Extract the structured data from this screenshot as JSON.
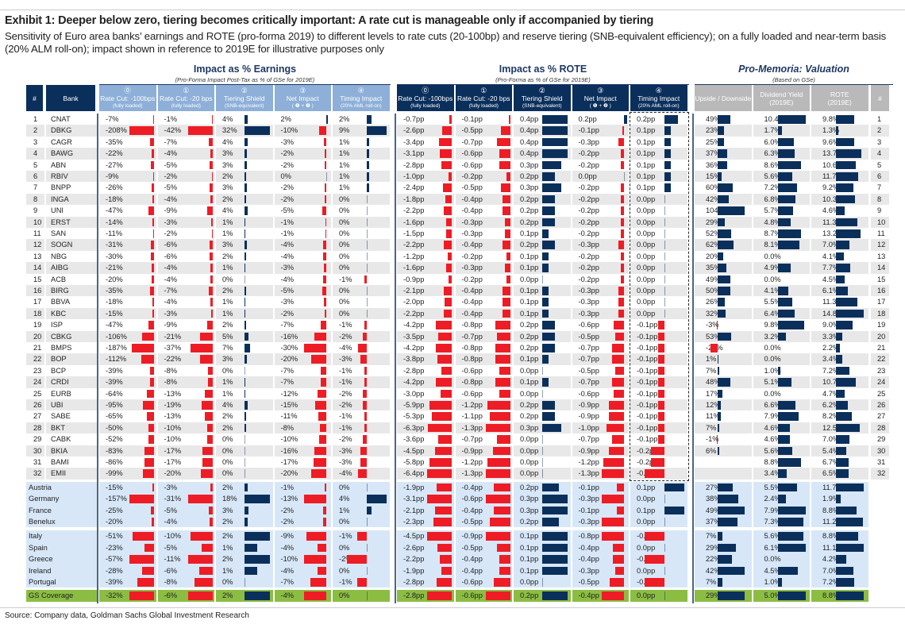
{
  "title": "Exhibit 1: Deeper below zero, tiering becomes critically important: A rate cut is manageable only if accompanied by tiering",
  "subtitle": "Sensitivity of Euro area banks’ earnings and ROTE (pro-forma 2019) to different levels to rate cuts (20-100bp) and reserve tiering (SNB-equivalent efficiency); on a fully loaded and near-term basis (20% ALM roll-on); impact shown in reference to 2019E for illustrative purposes only",
  "source": "Source: Company data, Goldman Sachs Global Investment Research",
  "colors": {
    "negative": "#ee1c25",
    "positive": "#0b2f5b",
    "header_dark": "#0b2f5b",
    "header_light": "#8dafd8",
    "header_gray": "#b9b9b9",
    "country_bg": "#d7e7f8",
    "total_bg": "#8bbd43"
  },
  "sections": {
    "earnings": {
      "title": "Impact as % Earnings",
      "subtitle": "(Pro-Forma Impact Post-Tax as % of GSe for 2019E)"
    },
    "rote": {
      "title": "Impact as % ROTE",
      "subtitle": "(Pro-Forma as % of GSe for 2019E)"
    },
    "valuation": {
      "title": "Pro-Memoria: Valuation",
      "subtitle": "(Based on GSe)"
    }
  },
  "headers": {
    "num": "#",
    "bank": "Bank",
    "impact_cols": [
      {
        "num": "⓪",
        "label": "Rate Cut: -100bps",
        "sub": "(fully loaded)"
      },
      {
        "num": "①",
        "label": "Rate Cut: -20 bps",
        "sub": "(fully loaded)"
      },
      {
        "num": "②",
        "label": "Tiering Shield",
        "sub": "(SNB-equivalent)"
      },
      {
        "num": "③",
        "label": "Net Impact",
        "sub": "( ❶ + ❷ )"
      },
      {
        "num": "④",
        "label": "Timing Impact",
        "sub": "(20% AML roll-on)"
      }
    ],
    "valuation_cols": [
      {
        "label": "Upside / Downside",
        "sub": ""
      },
      {
        "label": "Dividend Yield",
        "sub": "(2019E)"
      },
      {
        "label": "ROTE",
        "sub": "(2019E)"
      }
    ],
    "num_right": "#"
  },
  "chart_data": {
    "type": "table",
    "bank_rows": [
      {
        "num": "1",
        "name": "CNAT",
        "earnings": [
          "-7%",
          "-1%",
          "4%",
          "2%",
          "2%"
        ],
        "rote": [
          "-0.7pp",
          "-0.1pp",
          "0.4pp",
          "0.2pp",
          "0.2pp"
        ],
        "valuation": [
          "49%",
          "10.4%",
          "9.8%"
        ]
      },
      {
        "num": "2",
        "name": "DBKG",
        "earnings": [
          "-208%",
          "-42%",
          "32%",
          "-10%",
          "9%"
        ],
        "rote": [
          "-2.6pp",
          "-0.5pp",
          "0.4pp",
          "-0.1pp",
          "0.1pp"
        ],
        "valuation": [
          "23%",
          "1.7%",
          "1.3%"
        ]
      },
      {
        "num": "3",
        "name": "CAGR",
        "earnings": [
          "-35%",
          "-7%",
          "4%",
          "-3%",
          "1%"
        ],
        "rote": [
          "-3.4pp",
          "-0.7pp",
          "0.4pp",
          "-0.3pp",
          "0.1pp"
        ],
        "valuation": [
          "25%",
          "6.0%",
          "9.6%"
        ]
      },
      {
        "num": "4",
        "name": "BAWG",
        "earnings": [
          "-22%",
          "-4%",
          "3%",
          "-2%",
          "1%"
        ],
        "rote": [
          "-3.1pp",
          "-0.6pp",
          "0.4pp",
          "-0.2pp",
          "0.1pp"
        ],
        "valuation": [
          "37%",
          "6.3%",
          "13.7%"
        ]
      },
      {
        "num": "5",
        "name": "ABN",
        "earnings": [
          "-27%",
          "-5%",
          "3%",
          "-2%",
          "1%"
        ],
        "rote": [
          "-2.8pp",
          "-0.6pp",
          "0.3pp",
          "-0.2pp",
          "0.1pp"
        ],
        "valuation": [
          "36%",
          "8.6%",
          "10.6%"
        ]
      },
      {
        "num": "6",
        "name": "RBIV",
        "earnings": [
          "-9%",
          "-2%",
          "2%",
          "0%",
          "1%"
        ],
        "rote": [
          "-1.0pp",
          "-0.2pp",
          "0.2pp",
          "0.0pp",
          "0.1pp"
        ],
        "valuation": [
          "15%",
          "5.6%",
          "11.7%"
        ]
      },
      {
        "num": "7",
        "name": "BNPP",
        "earnings": [
          "-26%",
          "-5%",
          "3%",
          "-2%",
          "1%"
        ],
        "rote": [
          "-2.4pp",
          "-0.5pp",
          "0.3pp",
          "-0.2pp",
          "0.1pp"
        ],
        "valuation": [
          "60%",
          "7.2%",
          "9.2%"
        ]
      },
      {
        "num": "8",
        "name": "INGA",
        "earnings": [
          "-18%",
          "-4%",
          "2%",
          "-2%",
          "0%"
        ],
        "rote": [
          "-1.8pp",
          "-0.4pp",
          "0.2pp",
          "-0.2pp",
          "0.0pp"
        ],
        "valuation": [
          "42%",
          "6.8%",
          "10.3%"
        ]
      },
      {
        "num": "9",
        "name": "UNI",
        "earnings": [
          "-47%",
          "-9%",
          "4%",
          "-5%",
          "0%"
        ],
        "rote": [
          "-2.2pp",
          "-0.4pp",
          "0.2pp",
          "-0.2pp",
          "0.0pp"
        ],
        "valuation": [
          "104%",
          "5.7%",
          "4.6%"
        ]
      },
      {
        "num": "10",
        "name": "ERST",
        "earnings": [
          "-14%",
          "-3%",
          "1%",
          "-1%",
          "0%"
        ],
        "rote": [
          "-1.6pp",
          "-0.3pp",
          "0.2pp",
          "-0.2pp",
          "0.0pp"
        ],
        "valuation": [
          "29%",
          "4.8%",
          "11.3%"
        ]
      },
      {
        "num": "11",
        "name": "SAN",
        "earnings": [
          "-11%",
          "-2%",
          "1%",
          "-1%",
          "0%"
        ],
        "rote": [
          "-1.5pp",
          "-0.3pp",
          "0.1pp",
          "-0.2pp",
          "0.0pp"
        ],
        "valuation": [
          "52%",
          "8.7%",
          "13.2%"
        ]
      },
      {
        "num": "12",
        "name": "SOGN",
        "earnings": [
          "-31%",
          "-6%",
          "3%",
          "-4%",
          "0%"
        ],
        "rote": [
          "-2.2pp",
          "-0.4pp",
          "0.2pp",
          "-0.3pp",
          "0.0pp"
        ],
        "valuation": [
          "62%",
          "8.1%",
          "7.0%"
        ]
      },
      {
        "num": "13",
        "name": "NBG",
        "earnings": [
          "-30%",
          "-6%",
          "2%",
          "-4%",
          "0%"
        ],
        "rote": [
          "-1.2pp",
          "-0.2pp",
          "0.1pp",
          "-0.2pp",
          "0.0pp"
        ],
        "valuation": [
          "20%",
          "0.0%",
          "4.1%"
        ]
      },
      {
        "num": "14",
        "name": "AIBG",
        "earnings": [
          "-21%",
          "-4%",
          "1%",
          "-3%",
          "0%"
        ],
        "rote": [
          "-1.6pp",
          "-0.3pp",
          "0.1pp",
          "-0.2pp",
          "0.0pp"
        ],
        "valuation": [
          "35%",
          "4.9%",
          "7.7%"
        ]
      },
      {
        "num": "15",
        "name": "ACB",
        "earnings": [
          "-20%",
          "-4%",
          "0%",
          "-4%",
          "-1%"
        ],
        "rote": [
          "-0.9pp",
          "-0.2pp",
          "0.0pp",
          "-0.2pp",
          "0.0pp"
        ],
        "valuation": [
          "49%",
          "0.0%",
          "4.5%"
        ]
      },
      {
        "num": "16",
        "name": "BIRG",
        "earnings": [
          "-35%",
          "-7%",
          "2%",
          "-5%",
          "0%"
        ],
        "rote": [
          "-2.1pp",
          "-0.4pp",
          "0.1pp",
          "-0.3pp",
          "0.0pp"
        ],
        "valuation": [
          "50%",
          "4.1%",
          "6.1%"
        ]
      },
      {
        "num": "17",
        "name": "BBVA",
        "earnings": [
          "-18%",
          "-4%",
          "1%",
          "-3%",
          "0%"
        ],
        "rote": [
          "-2.0pp",
          "-0.4pp",
          "0.1pp",
          "-0.3pp",
          "0.0pp"
        ],
        "valuation": [
          "26%",
          "5.5%",
          "11.3%"
        ]
      },
      {
        "num": "18",
        "name": "KBC",
        "earnings": [
          "-15%",
          "-3%",
          "1%",
          "-2%",
          "0%"
        ],
        "rote": [
          "-2.2pp",
          "-0.4pp",
          "0.1pp",
          "-0.3pp",
          "0.0pp"
        ],
        "valuation": [
          "32%",
          "6.4%",
          "14.8%"
        ]
      },
      {
        "num": "19",
        "name": "ISP",
        "earnings": [
          "-47%",
          "-9%",
          "2%",
          "-7%",
          "-1%"
        ],
        "rote": [
          "-4.2pp",
          "-0.8pp",
          "0.2pp",
          "-0.6pp",
          "-0.1pp"
        ],
        "valuation": [
          "-3%",
          "9.8%",
          "9.0%"
        ]
      },
      {
        "num": "20",
        "name": "CBKG",
        "earnings": [
          "-106%",
          "-21%",
          "5%",
          "-16%",
          "-2%"
        ],
        "rote": [
          "-3.5pp",
          "-0.7pp",
          "0.2pp",
          "-0.5pp",
          "-0.1pp"
        ],
        "valuation": [
          "53%",
          "3.2%",
          "3.3%"
        ]
      },
      {
        "num": "21",
        "name": "BMPS",
        "earnings": [
          "-187%",
          "-37%",
          "7%",
          "-30%",
          "-4%"
        ],
        "rote": [
          "-4.2pp",
          "-0.8pp",
          "0.2pp",
          "-0.7pp",
          "-0.1pp"
        ],
        "valuation": [
          "-28%",
          "0.0%",
          "2.2%"
        ]
      },
      {
        "num": "22",
        "name": "BOP",
        "earnings": [
          "-112%",
          "-22%",
          "3%",
          "-20%",
          "-3%"
        ],
        "rote": [
          "-3.8pp",
          "-0.8pp",
          "0.1pp",
          "-0.7pp",
          "-0.1pp"
        ],
        "valuation": [
          "1%",
          "0.0%",
          "3.4%"
        ]
      },
      {
        "num": "23",
        "name": "BCP",
        "earnings": [
          "-39%",
          "-8%",
          "0%",
          "-7%",
          "-1%"
        ],
        "rote": [
          "-2.8pp",
          "-0.6pp",
          "0.0pp",
          "-0.5pp",
          "-0.1pp"
        ],
        "valuation": [
          "7%",
          "1.0%",
          "7.2%"
        ]
      },
      {
        "num": "24",
        "name": "CRDI",
        "earnings": [
          "-39%",
          "-8%",
          "1%",
          "-7%",
          "-1%"
        ],
        "rote": [
          "-4.2pp",
          "-0.8pp",
          "0.1pp",
          "-0.7pp",
          "-0.1pp"
        ],
        "valuation": [
          "48%",
          "5.1%",
          "10.7%"
        ]
      },
      {
        "num": "25",
        "name": "EURB",
        "earnings": [
          "-64%",
          "-13%",
          "1%",
          "-12%",
          "-2%"
        ],
        "rote": [
          "-3.0pp",
          "-0.6pp",
          "0.0pp",
          "-0.6pp",
          "-0.1pp"
        ],
        "valuation": [
          "17%",
          "0.0%",
          "4.7%"
        ]
      },
      {
        "num": "26",
        "name": "UBI",
        "earnings": [
          "-95%",
          "-19%",
          "4%",
          "-15%",
          "-2%"
        ],
        "rote": [
          "-5.9pp",
          "-1.2pp",
          "0.2pp",
          "-0.9pp",
          "-0.1pp"
        ],
        "valuation": [
          "12%",
          "6.6%",
          "6.2%"
        ]
      },
      {
        "num": "27",
        "name": "SABE",
        "earnings": [
          "-65%",
          "-13%",
          "2%",
          "-11%",
          "-1%"
        ],
        "rote": [
          "-5.3pp",
          "-1.1pp",
          "0.2pp",
          "-0.9pp",
          "-0.1pp"
        ],
        "valuation": [
          "11%",
          "7.9%",
          "8.2%"
        ]
      },
      {
        "num": "28",
        "name": "BKT",
        "earnings": [
          "-50%",
          "-10%",
          "2%",
          "-8%",
          "-1%"
        ],
        "rote": [
          "-6.3pp",
          "-1.3pp",
          "0.3pp",
          "-1.0pp",
          "-0.1pp"
        ],
        "valuation": [
          "7%",
          "4.6%",
          "12.5%"
        ]
      },
      {
        "num": "29",
        "name": "CABK",
        "earnings": [
          "-52%",
          "-10%",
          "0%",
          "-10%",
          "-2%"
        ],
        "rote": [
          "-3.6pp",
          "-0.7pp",
          "0.0pp",
          "-0.7pp",
          "-0.1pp"
        ],
        "valuation": [
          "-1%",
          "4.6%",
          "7.0%"
        ]
      },
      {
        "num": "30",
        "name": "BKIA",
        "earnings": [
          "-83%",
          "-17%",
          "0%",
          "-16%",
          "-3%"
        ],
        "rote": [
          "-4.5pp",
          "-0.9pp",
          "0.0pp",
          "-0.9pp",
          "-0.2pp"
        ],
        "valuation": [
          "6%",
          "5.6%",
          "5.4%"
        ]
      },
      {
        "num": "31",
        "name": "BAMI",
        "earnings": [
          "-86%",
          "-17%",
          "0%",
          "-17%",
          "-3%"
        ],
        "rote": [
          "-5.8pp",
          "-1.2pp",
          "0.0pp",
          "-1.2pp",
          "-0.2pp"
        ],
        "valuation": [
          "",
          "8.8%",
          "6.7%"
        ]
      },
      {
        "num": "32",
        "name": "EMII",
        "earnings": [
          "-99%",
          "-20%",
          "0%",
          "-20%",
          "-4%"
        ],
        "rote": [
          "-6.4pp",
          "-1.3pp",
          "0.0pp",
          "-1.3pp",
          "-0.3pp"
        ],
        "valuation": [
          "",
          "3.4%",
          "6.5%"
        ]
      }
    ],
    "country_groups": [
      [
        {
          "name": "Austria",
          "earnings": [
            "-15%",
            "-3%",
            "2%",
            "-1%",
            "0%"
          ],
          "rote": [
            "-1.9pp",
            "-0.4pp",
            "0.2pp",
            "-0.1pp",
            "0.1pp"
          ],
          "valuation": [
            "27%",
            "5.5%",
            "11.7%"
          ]
        },
        {
          "name": "Germany",
          "earnings": [
            "-157%",
            "-31%",
            "18%",
            "-13%",
            "4%"
          ],
          "rote": [
            "-3.1pp",
            "-0.6pp",
            "0.3pp",
            "-0.3pp",
            "0.0pp"
          ],
          "valuation": [
            "38%",
            "2.4%",
            "1.9%"
          ]
        },
        {
          "name": "France",
          "earnings": [
            "-25%",
            "-5%",
            "3%",
            "-2%",
            "1%"
          ],
          "rote": [
            "-2.1pp",
            "-0.4pp",
            "0.3pp",
            "-0.1pp",
            "0.1pp"
          ],
          "valuation": [
            "49%",
            "7.9%",
            "8.8%"
          ]
        },
        {
          "name": "Benelux",
          "earnings": [
            "-20%",
            "-4%",
            "2%",
            "-2%",
            "0%"
          ],
          "rote": [
            "-2.3pp",
            "-0.5pp",
            "0.2pp",
            "-0.3pp",
            "0.0pp"
          ],
          "valuation": [
            "37%",
            "7.3%",
            "11.2%"
          ]
        }
      ],
      [
        {
          "name": "Italy",
          "earnings": [
            "-51%",
            "-10%",
            "2%",
            "-9%",
            "-1%"
          ],
          "rote": [
            "-4.5pp",
            "-0.9pp",
            "0.1pp",
            "-0.8pp",
            "-0.1pp"
          ],
          "valuation": [
            "7%",
            "5.6%",
            "8.8%"
          ]
        },
        {
          "name": "Spain",
          "earnings": [
            "-23%",
            "-5%",
            "1%",
            "-4%",
            "0%"
          ],
          "rote": [
            "-2.6pp",
            "-0.5pp",
            "0.1pp",
            "-0.4pp",
            "0.0pp"
          ],
          "valuation": [
            "29%",
            "6.1%",
            "11.1%"
          ]
        },
        {
          "name": "Greece",
          "earnings": [
            "-57%",
            "-11%",
            "2%",
            "-10%",
            "-2%"
          ],
          "rote": [
            "-2.2pp",
            "-0.4pp",
            "0.1pp",
            "-0.4pp",
            "-0.1pp"
          ],
          "valuation": [
            "22%",
            "0.0%",
            "4.2%"
          ]
        },
        {
          "name": "Ireland",
          "earnings": [
            "-28%",
            "-6%",
            "1%",
            "-4%",
            "0%"
          ],
          "rote": [
            "-1.9pp",
            "-0.4pp",
            "0.1pp",
            "-0.3pp",
            "0.0pp"
          ],
          "valuation": [
            "42%",
            "4.5%",
            "7.0%"
          ]
        },
        {
          "name": "Portugal",
          "earnings": [
            "-39%",
            "-8%",
            "0%",
            "-7%",
            "-1%"
          ],
          "rote": [
            "-2.8pp",
            "-0.6pp",
            "0.0pp",
            "-0.5pp",
            "-0.1pp"
          ],
          "valuation": [
            "7%",
            "1.0%",
            "7.2%"
          ]
        }
      ]
    ],
    "total_row": {
      "name": "GS Coverage",
      "earnings": [
        "-32%",
        "-6%",
        "2%",
        "-4%",
        "0%"
      ],
      "rote": [
        "-2.8pp",
        "-0.6pp",
        "0.2pp",
        "-0.4pp",
        "0.0pp"
      ],
      "valuation": [
        "29%",
        "5.0%",
        "8.8%"
      ]
    }
  }
}
